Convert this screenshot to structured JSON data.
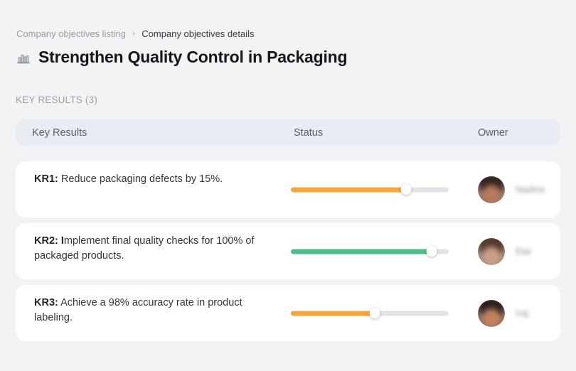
{
  "breadcrumb": {
    "separator": "›",
    "items": [
      {
        "label": "Company objectives listing"
      },
      {
        "label": "Company objectives details"
      }
    ]
  },
  "header": {
    "icon": "buildings-icon",
    "title": "Strengthen Quality Control in Packaging"
  },
  "section": {
    "label": "KEY RESULTS (3)"
  },
  "table": {
    "columns": [
      "Key Results",
      "Status",
      "Owner"
    ],
    "rows": [
      {
        "label_bold": "KR1:",
        "text": " Reduce packaging defects by 15%.",
        "progress_percent": 73,
        "progress_color": "#F6A63B",
        "owner": {
          "name": "Nadine",
          "blurred": true,
          "avatar_colors": {
            "hair": "#33241f",
            "skin": "#b97a5e",
            "bg_top": "#cdbab0",
            "bg_bottom": "#7d5f51"
          }
        }
      },
      {
        "label_bold": "KR2: I",
        "text": "mplement final quality checks for 100% of packaged products.",
        "progress_percent": 89,
        "progress_color": "#4EBE86",
        "owner": {
          "name": "Elai",
          "blurred": true,
          "avatar_colors": {
            "hair": "#54392a",
            "skin": "#caa089",
            "bg_top": "#c3b2a6",
            "bg_bottom": "#8d776a"
          }
        }
      },
      {
        "label_bold": "KR3:",
        "text": " Achieve a 98% accuracy rate in product labeling.",
        "progress_percent": 53,
        "progress_color": "#F6A63B",
        "owner": {
          "name": "Iraj",
          "blurred": true,
          "avatar_colors": {
            "hair": "#2b1f1e",
            "skin": "#c4825f",
            "bg_top": "#bba294",
            "bg_bottom": "#73584c"
          }
        }
      }
    ]
  },
  "colors": {
    "page_bg": "#F2F3F5",
    "table_header_bg": "#E9EDF3",
    "card_bg": "#FFFFFF",
    "track": "#E2E3E6",
    "orange": "#F6A63B",
    "green": "#4EBE86"
  }
}
